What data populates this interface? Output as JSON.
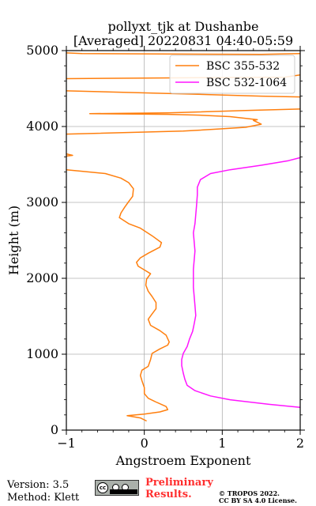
{
  "chart_data": {
    "type": "line",
    "title": "pollyxt_tjk at Dushanbe",
    "subtitle": "[Averaged] 20220831 04:40-05:59",
    "xlabel": "Angstroem Exponent",
    "ylabel": "Height (m)",
    "xlim": [
      -1,
      2
    ],
    "ylim": [
      0,
      5000
    ],
    "xticks": [
      -1,
      0,
      1,
      2
    ],
    "yticks": [
      0,
      1000,
      2000,
      3000,
      4000,
      5000
    ],
    "grid": true,
    "legend_position": "top-right",
    "series": [
      {
        "name": "BSC 355-532",
        "color": "#ff7f0e",
        "segments": [
          [
            [
              0.03,
              120
            ],
            [
              -0.05,
              160
            ],
            [
              -0.22,
              190
            ],
            [
              0.0,
              210
            ],
            [
              0.2,
              240
            ],
            [
              0.3,
              270
            ],
            [
              0.28,
              310
            ],
            [
              0.15,
              370
            ],
            [
              0.05,
              420
            ],
            [
              0.0,
              480
            ],
            [
              0.0,
              560
            ],
            [
              -0.03,
              650
            ],
            [
              -0.05,
              720
            ],
            [
              -0.03,
              790
            ],
            [
              0.05,
              840
            ],
            [
              0.08,
              930
            ],
            [
              0.1,
              1010
            ],
            [
              0.2,
              1070
            ],
            [
              0.3,
              1120
            ],
            [
              0.32,
              1160
            ],
            [
              0.28,
              1250
            ],
            [
              0.2,
              1310
            ],
            [
              0.08,
              1380
            ],
            [
              0.05,
              1460
            ],
            [
              0.1,
              1530
            ],
            [
              0.15,
              1600
            ],
            [
              0.15,
              1680
            ],
            [
              0.1,
              1760
            ],
            [
              0.05,
              1830
            ],
            [
              0.02,
              1910
            ],
            [
              0.03,
              1990
            ],
            [
              0.08,
              2060
            ],
            [
              0.0,
              2110
            ],
            [
              -0.08,
              2160
            ],
            [
              -0.1,
              2210
            ],
            [
              -0.05,
              2270
            ],
            [
              0.05,
              2330
            ],
            [
              0.2,
              2410
            ],
            [
              0.22,
              2470
            ],
            [
              0.1,
              2560
            ],
            [
              -0.05,
              2660
            ],
            [
              -0.2,
              2720
            ],
            [
              -0.32,
              2800
            ],
            [
              -0.3,
              2860
            ],
            [
              -0.25,
              2940
            ],
            [
              -0.2,
              3010
            ],
            [
              -0.15,
              3080
            ],
            [
              -0.14,
              3180
            ],
            [
              -0.2,
              3260
            ],
            [
              -0.3,
              3320
            ],
            [
              -0.5,
              3380
            ],
            [
              -0.8,
              3410
            ],
            [
              -1.0,
              3430
            ]
          ],
          [
            [
              -1.0,
              3610
            ],
            [
              -0.92,
              3620
            ],
            [
              -1.0,
              3640
            ]
          ],
          [
            [
              -1.0,
              3900
            ],
            [
              -0.6,
              3910
            ],
            [
              0.5,
              3940
            ],
            [
              1.0,
              3970
            ],
            [
              1.3,
              3990
            ],
            [
              1.5,
              4030
            ],
            [
              1.4,
              4080
            ],
            [
              1.45,
              4090
            ],
            [
              1.1,
              4130
            ],
            [
              0.7,
              4150
            ],
            [
              0.3,
              4160
            ],
            [
              -0.7,
              4170
            ],
            [
              0.3,
              4180
            ],
            [
              1.3,
              4210
            ],
            [
              2.0,
              4230
            ]
          ],
          [
            [
              2.0,
              4390
            ],
            [
              1.5,
              4400
            ],
            [
              0.5,
              4430
            ],
            [
              -1.0,
              4470
            ]
          ],
          [
            [
              -1.0,
              4630
            ],
            [
              0.2,
              4640
            ],
            [
              1.8,
              4650
            ],
            [
              2.0,
              4680
            ]
          ],
          [
            [
              -1.0,
              4970
            ],
            [
              -0.8,
              4960
            ],
            [
              1.5,
              4950
            ],
            [
              2.0,
              4960
            ]
          ]
        ]
      },
      {
        "name": "BSC 532-1064",
        "color": "#ff14ff",
        "segments": [
          [
            [
              2.0,
              300
            ],
            [
              1.6,
              340
            ],
            [
              1.1,
              400
            ],
            [
              0.85,
              450
            ],
            [
              0.65,
              520
            ],
            [
              0.55,
              590
            ],
            [
              0.52,
              670
            ],
            [
              0.5,
              750
            ],
            [
              0.48,
              850
            ],
            [
              0.48,
              930
            ],
            [
              0.5,
              1010
            ],
            [
              0.55,
              1100
            ],
            [
              0.58,
              1200
            ],
            [
              0.62,
              1300
            ],
            [
              0.64,
              1400
            ],
            [
              0.66,
              1510
            ],
            [
              0.65,
              1640
            ],
            [
              0.64,
              1760
            ],
            [
              0.63,
              1880
            ],
            [
              0.63,
              2000
            ],
            [
              0.63,
              2120
            ],
            [
              0.64,
              2240
            ],
            [
              0.65,
              2360
            ],
            [
              0.64,
              2480
            ],
            [
              0.63,
              2600
            ],
            [
              0.65,
              2720
            ],
            [
              0.66,
              2840
            ],
            [
              0.67,
              2960
            ],
            [
              0.68,
              3100
            ],
            [
              0.68,
              3200
            ],
            [
              0.72,
              3300
            ],
            [
              0.85,
              3380
            ],
            [
              1.1,
              3430
            ],
            [
              1.5,
              3490
            ],
            [
              1.85,
              3550
            ],
            [
              2.0,
              3590
            ]
          ]
        ]
      }
    ]
  },
  "footer": {
    "version": "Version: 3.5",
    "method": "Method: Klett",
    "license_badge": "cc-by-sa-badge",
    "preliminary_line1": "Preliminary",
    "preliminary_line2": "Results.",
    "copyright_line1": "© TROPOS 2022.",
    "copyright_line2": "CC BY SA 4.0 License."
  }
}
